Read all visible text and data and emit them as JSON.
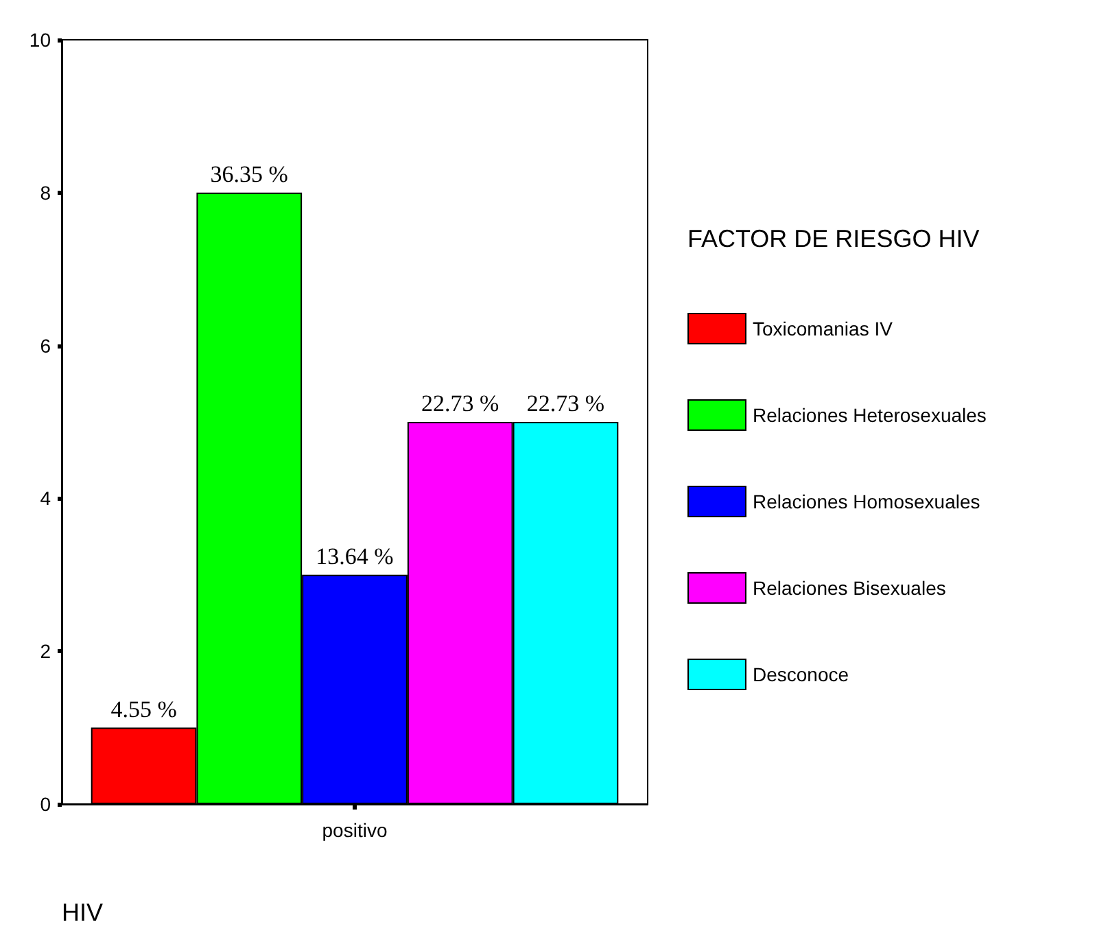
{
  "chart_data": {
    "type": "bar",
    "xlabel": "HIV",
    "legend_title": "FACTOR DE RIESGO HIV",
    "categories": [
      "positivo"
    ],
    "series": [
      {
        "name": "Toxicomanias IV",
        "color": "#ff0000",
        "values": [
          1
        ]
      },
      {
        "name": "Relaciones Heterosexuales",
        "color": "#00ff00",
        "values": [
          8
        ]
      },
      {
        "name": "Relaciones Homosexuales",
        "color": "#0000ff",
        "values": [
          3
        ]
      },
      {
        "name": "Relaciones Bisexuales",
        "color": "#ff00ff",
        "values": [
          5
        ]
      },
      {
        "name": "Desconoce",
        "color": "#00ffff",
        "values": [
          5
        ]
      }
    ],
    "annotations": [
      "4.55 %",
      "36.35 %",
      "13.64 %",
      "22.73 %",
      "22.73 %"
    ],
    "ylim": [
      0,
      10
    ],
    "yticks": [
      0,
      2,
      4,
      6,
      8,
      10
    ],
    "grid": false,
    "legend": "right"
  }
}
